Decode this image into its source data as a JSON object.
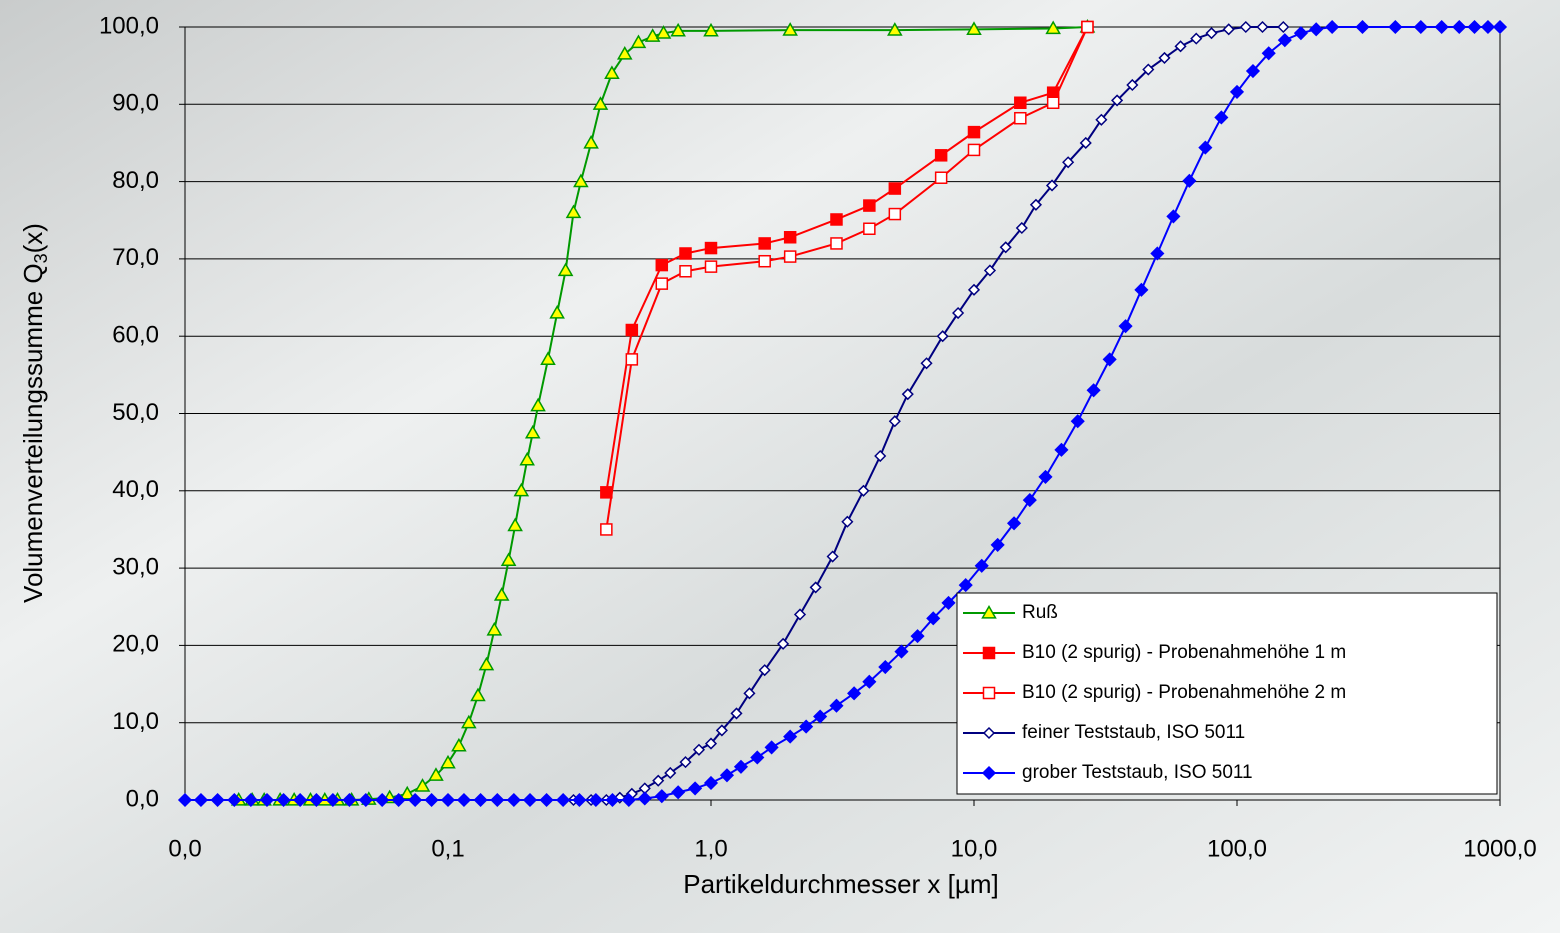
{
  "chart_data": {
    "type": "line",
    "x_label": "Partikeldurchmesser x [µm]",
    "y_label": "Volumenverteilungssumme Q",
    "y_label_sub": "3",
    "y_label_end": "(x)",
    "xscale": "log",
    "xlim": [
      0.01,
      1000
    ],
    "xticks": [
      {
        "value": 0.01,
        "label": "0,0"
      },
      {
        "value": 0.1,
        "label": "0,1"
      },
      {
        "value": 1,
        "label": "1,0"
      },
      {
        "value": 10,
        "label": "10,0"
      },
      {
        "value": 100,
        "label": "100,0"
      },
      {
        "value": 1000,
        "label": "1000,0"
      }
    ],
    "ylim": [
      0,
      100
    ],
    "yticks": [
      {
        "value": 0,
        "label": "0,0"
      },
      {
        "value": 10,
        "label": "10,0"
      },
      {
        "value": 20,
        "label": "20,0"
      },
      {
        "value": 30,
        "label": "30,0"
      },
      {
        "value": 40,
        "label": "40,0"
      },
      {
        "value": 50,
        "label": "50,0"
      },
      {
        "value": 60,
        "label": "60,0"
      },
      {
        "value": 70,
        "label": "70,0"
      },
      {
        "value": 80,
        "label": "80,0"
      },
      {
        "value": 90,
        "label": "90,0"
      },
      {
        "value": 100,
        "label": "100,0"
      }
    ],
    "grid": true,
    "legend": "lower right",
    "series": [
      {
        "name": "Ruß",
        "color": "#009900",
        "marker": "triangle",
        "marker_fill": "#ffff00",
        "x": [
          0.016,
          0.018,
          0.02,
          0.023,
          0.026,
          0.03,
          0.034,
          0.038,
          0.043,
          0.05,
          0.06,
          0.07,
          0.08,
          0.09,
          0.1,
          0.11,
          0.12,
          0.13,
          0.14,
          0.15,
          0.16,
          0.17,
          0.18,
          0.19,
          0.2,
          0.21,
          0.22,
          0.24,
          0.26,
          0.28,
          0.3,
          0.32,
          0.35,
          0.38,
          0.42,
          0.47,
          0.53,
          0.6,
          0.66,
          0.75,
          1,
          2,
          5,
          10,
          20,
          27
        ],
        "values": [
          0,
          0,
          0,
          0,
          0,
          0,
          0,
          0,
          0,
          0.1,
          0.3,
          0.8,
          1.8,
          3.2,
          4.8,
          7,
          10,
          13.5,
          17.5,
          22,
          26.5,
          31,
          35.5,
          40,
          44,
          47.5,
          51,
          57,
          63,
          68.5,
          76,
          80,
          85,
          90,
          94,
          96.5,
          98,
          98.8,
          99.2,
          99.5,
          99.5,
          99.6,
          99.6,
          99.7,
          99.8,
          100
        ]
      },
      {
        "name": "B10 (2 spurig) - Probenahmehöhe 1 m",
        "color": "#ff0000",
        "marker": "square",
        "marker_fill": "#ff0000",
        "x": [
          0.4,
          0.5,
          0.65,
          0.8,
          1.0,
          1.6,
          2.0,
          3.0,
          4.0,
          5.0,
          7.5,
          10,
          15,
          20,
          27
        ],
        "values": [
          39.8,
          60.8,
          69.2,
          70.7,
          71.4,
          72.0,
          72.8,
          75.1,
          76.9,
          79.1,
          83.4,
          86.4,
          90.2,
          91.5,
          100
        ]
      },
      {
        "name": "B10 (2 spurig) - Probenahmehöhe 2 m",
        "color": "#ff0000",
        "marker": "square",
        "marker_fill": "#ffffff",
        "x": [
          0.4,
          0.5,
          0.65,
          0.8,
          1.0,
          1.6,
          2.0,
          3.0,
          4.0,
          5.0,
          7.5,
          10,
          15,
          20,
          27
        ],
        "values": [
          35.0,
          57.0,
          66.8,
          68.4,
          69.0,
          69.7,
          70.3,
          72.0,
          73.9,
          75.8,
          80.5,
          84.1,
          88.2,
          90.2,
          100
        ]
      },
      {
        "name": "feiner Teststaub, ISO 5011",
        "color": "#000080",
        "marker": "diamond",
        "marker_fill": "#ffffff",
        "x": [
          0.3,
          0.35,
          0.4,
          0.45,
          0.5,
          0.56,
          0.63,
          0.7,
          0.8,
          0.9,
          1.0,
          1.1,
          1.25,
          1.4,
          1.6,
          1.88,
          2.18,
          2.5,
          2.9,
          3.3,
          3.8,
          4.4,
          5.0,
          5.6,
          6.6,
          7.6,
          8.7,
          10,
          11.5,
          13.2,
          15.2,
          17.2,
          19.8,
          22.8,
          26.6,
          30.5,
          35,
          40,
          46,
          53,
          61,
          70,
          80,
          93,
          108,
          125,
          150
        ],
        "values": [
          0,
          0,
          0,
          0.3,
          0.8,
          1.5,
          2.5,
          3.5,
          4.9,
          6.5,
          7.3,
          9,
          11.2,
          13.8,
          16.8,
          20.2,
          24,
          27.5,
          31.5,
          36,
          40,
          44.5,
          49,
          52.5,
          56.5,
          60,
          63,
          66,
          68.5,
          71.5,
          74,
          77,
          79.5,
          82.5,
          85,
          88,
          90.5,
          92.5,
          94.5,
          96,
          97.5,
          98.5,
          99.2,
          99.7,
          100,
          100,
          100
        ]
      },
      {
        "name": "grober Teststaub, ISO 5011",
        "color": "#0000ff",
        "marker": "diamond",
        "marker_fill": "#0000ff",
        "x": [
          0.01,
          0.0115,
          0.0133,
          0.0154,
          0.0178,
          0.0205,
          0.0237,
          0.0274,
          0.0316,
          0.0365,
          0.0422,
          0.0487,
          0.0562,
          0.0649,
          0.075,
          0.0866,
          0.1,
          0.115,
          0.133,
          0.154,
          0.178,
          0.205,
          0.237,
          0.274,
          0.316,
          0.365,
          0.422,
          0.487,
          0.56,
          0.65,
          0.75,
          0.87,
          1.0,
          1.15,
          1.3,
          1.5,
          1.7,
          2.0,
          2.3,
          2.6,
          3.0,
          3.5,
          4.0,
          4.6,
          5.3,
          6.1,
          7.0,
          8.0,
          9.3,
          10.7,
          12.3,
          14.2,
          16.3,
          18.7,
          21.5,
          24.8,
          28.5,
          32.8,
          37.7,
          43.3,
          49.8,
          57.3,
          65.9,
          75.8,
          87.2,
          100,
          115,
          132,
          152,
          175,
          200,
          230,
          300,
          400,
          500,
          600,
          700,
          800,
          900,
          1000
        ],
        "values": [
          0,
          0,
          0,
          0,
          0,
          0,
          0,
          0,
          0,
          0,
          0,
          0,
          0,
          0,
          0,
          0,
          0,
          0,
          0,
          0,
          0,
          0,
          0,
          0,
          0,
          0,
          0,
          0,
          0.2,
          0.5,
          1,
          1.5,
          2.2,
          3.2,
          4.3,
          5.5,
          6.8,
          8.2,
          9.5,
          10.8,
          12.2,
          13.8,
          15.3,
          17.2,
          19.2,
          21.2,
          23.5,
          25.5,
          27.8,
          30.3,
          33,
          35.8,
          38.8,
          41.8,
          45.3,
          49,
          53,
          57,
          61.3,
          66,
          70.7,
          75.5,
          80.1,
          84.4,
          88.3,
          91.6,
          94.3,
          96.6,
          98.3,
          99.2,
          99.7,
          100,
          100,
          100,
          100,
          100,
          100,
          100,
          100,
          100
        ]
      }
    ]
  }
}
